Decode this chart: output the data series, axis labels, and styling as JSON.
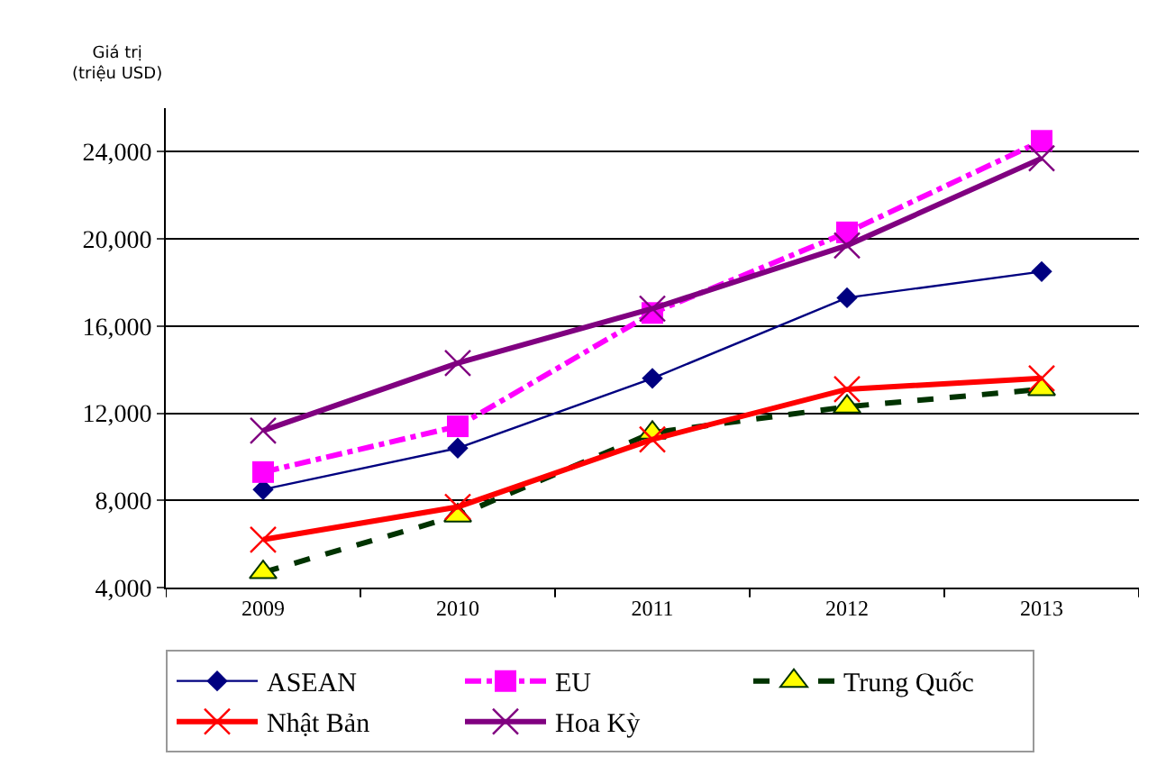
{
  "chart_data": {
    "type": "line",
    "ylabel": "Giá trị\n(triệu USD)",
    "categories": [
      "2009",
      "2010",
      "2011",
      "2012",
      "2013"
    ],
    "series": [
      {
        "name": "ASEAN",
        "color": "#000080",
        "marker": "diamond",
        "line_style": "solid",
        "values": [
          8500,
          10400,
          13600,
          17300,
          18500
        ]
      },
      {
        "name": "EU",
        "color": "#ff00ff",
        "marker": "square",
        "line_style": "dashdot",
        "values": [
          9300,
          11400,
          16600,
          20300,
          24500
        ]
      },
      {
        "name": "Trung Quốc",
        "color": "#003300",
        "marker": "triangle",
        "line_style": "dashed",
        "values": [
          4700,
          7300,
          11100,
          12300,
          13100
        ]
      },
      {
        "name": "Nhật Bản",
        "color": "#ff0000",
        "marker": "cross",
        "line_style": "solid",
        "values": [
          6200,
          7700,
          10800,
          13100,
          13600
        ]
      },
      {
        "name": "Hoa Kỳ",
        "color": "#800080",
        "marker": "cross",
        "line_style": "solid",
        "values": [
          11200,
          14300,
          16800,
          19700,
          23700
        ]
      }
    ],
    "ylim": [
      4000,
      26000
    ],
    "yticks": [
      {
        "value": 4000,
        "label": "4,000"
      },
      {
        "value": 8000,
        "label": "8,000"
      },
      {
        "value": 12000,
        "label": "12,000"
      },
      {
        "value": 16000,
        "label": "16,000"
      },
      {
        "value": 20000,
        "label": "20,000"
      },
      {
        "value": 24000,
        "label": "24,000"
      }
    ],
    "grid": "y",
    "legend": "bottom"
  }
}
